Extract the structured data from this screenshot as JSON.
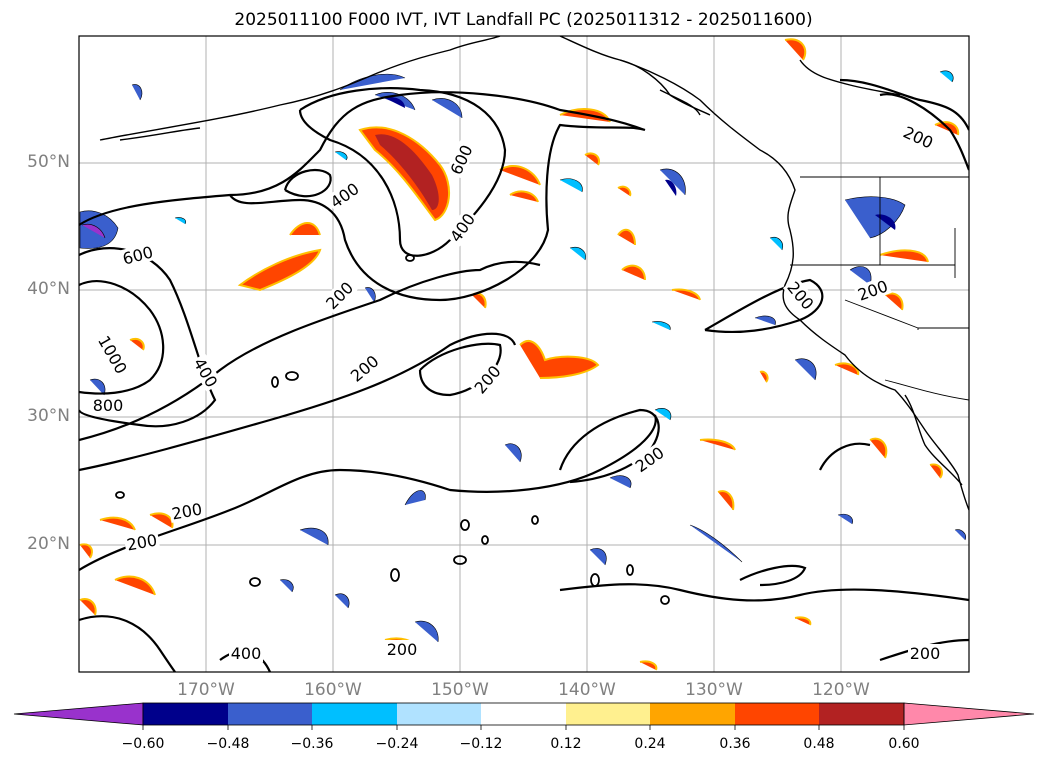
{
  "title": "2025011100 F000 IVT, IVT Landfall PC (2025011312 - 2025011600)",
  "map": {
    "lat_labels": [
      "50°N",
      "40°N",
      "30°N",
      "20°N"
    ],
    "lon_labels": [
      "170°W",
      "160°W",
      "150°W",
      "140°W",
      "130°W",
      "120°W"
    ],
    "contour_labels": [
      "600",
      "400",
      "600",
      "400",
      "200",
      "200",
      "1000",
      "400",
      "800",
      "200",
      "200",
      "200",
      "200",
      "200",
      "400",
      "200",
      "200",
      "200",
      "200"
    ]
  },
  "colorbar": {
    "tick_labels": [
      "−0.60",
      "−0.48",
      "−0.36",
      "−0.24",
      "−0.12",
      "0.12",
      "0.24",
      "0.36",
      "0.48",
      "0.60"
    ],
    "colors": [
      "#9932cc",
      "#00008b",
      "#3a5fcd",
      "#00bfff",
      "#b0e2ff",
      "#ffffff",
      "#fff08f",
      "#ffa500",
      "#ff4500",
      "#b22222",
      "#ff88aa"
    ]
  }
}
